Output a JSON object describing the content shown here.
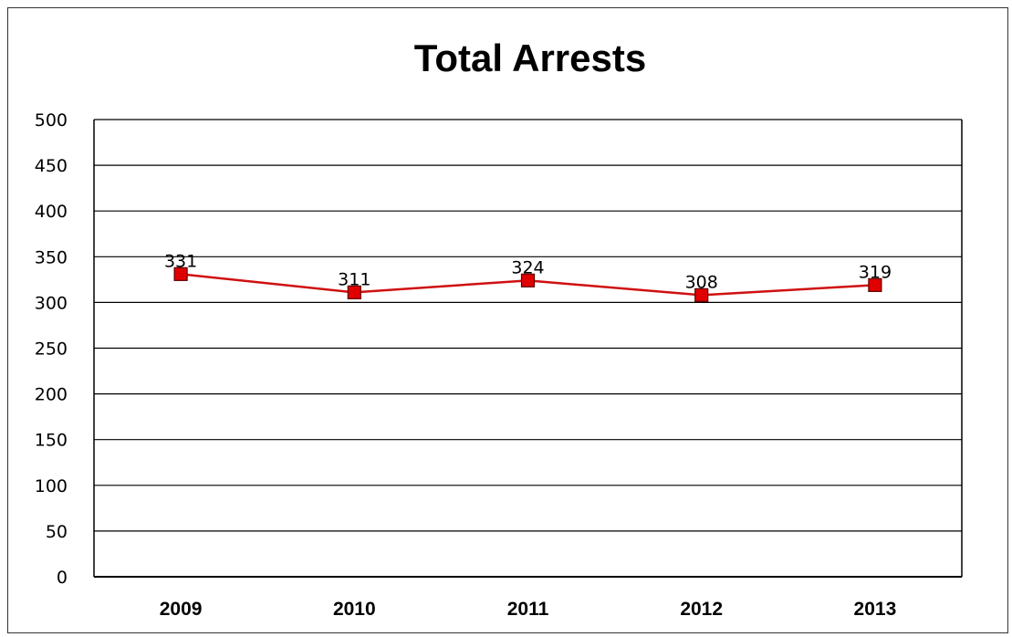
{
  "chart_data": {
    "type": "line",
    "title": "Total Arrests",
    "xlabel": "",
    "ylabel": "",
    "categories": [
      "2009",
      "2010",
      "2011",
      "2012",
      "2013"
    ],
    "series": [
      {
        "values": [
          331,
          311,
          324,
          308,
          319
        ]
      }
    ],
    "ylim": [
      0,
      500
    ],
    "yticks": [
      "0",
      "50",
      "100",
      "150",
      "200",
      "250",
      "300",
      "350",
      "400",
      "450",
      "500"
    ],
    "data_labels": [
      "331",
      "311",
      "324",
      "308",
      "319"
    ],
    "grid": true,
    "legend": "none",
    "colors": {
      "line": "#d01010",
      "marker": "#e00000",
      "marker_border": "#600000",
      "grid": "#000000"
    }
  }
}
